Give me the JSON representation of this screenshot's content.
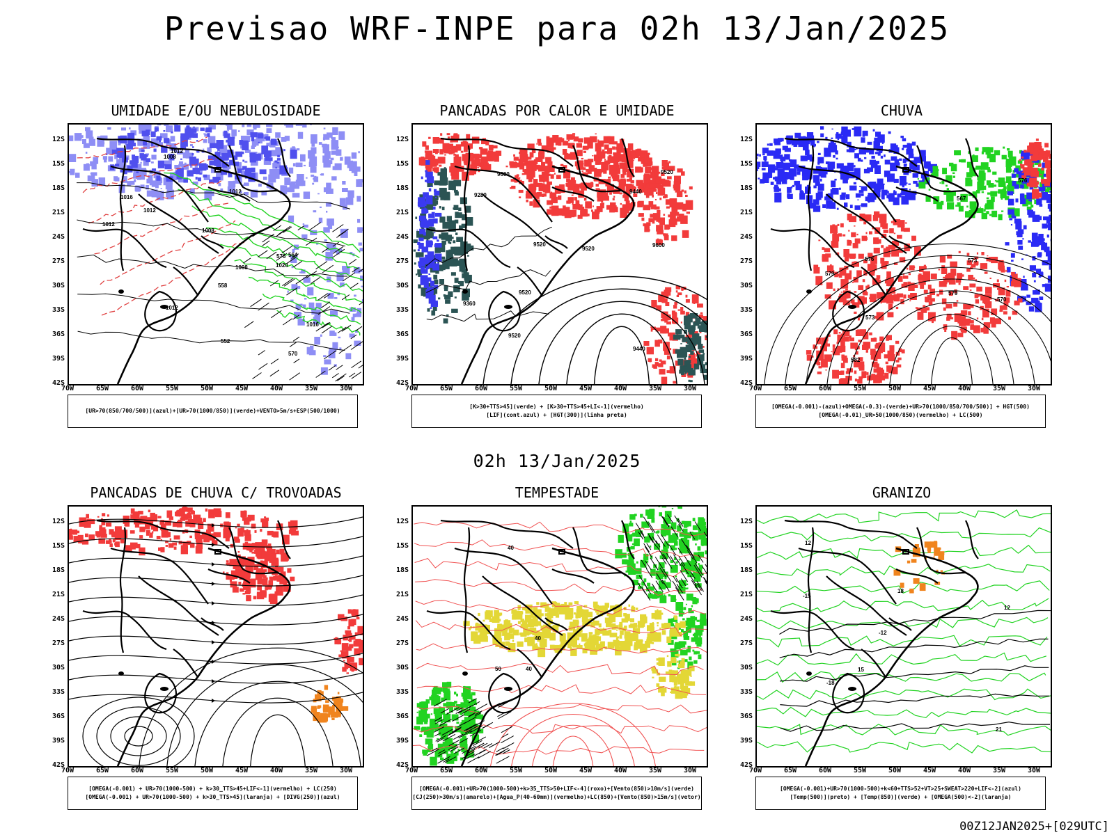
{
  "title": "Previsao WRF-INPE  para 02h 13/Jan/2025",
  "subtitle": "02h 13/Jan/2025",
  "footer": "00Z12JAN2025+[029UTC]",
  "lat_labels": [
    "12S",
    "15S",
    "18S",
    "21S",
    "24S",
    "27S",
    "30S",
    "33S",
    "36S",
    "39S",
    "42S"
  ],
  "lon_labels": [
    "70W",
    "65W",
    "60W",
    "55W",
    "50W",
    "45W",
    "40W",
    "35W",
    "30W"
  ],
  "panels": [
    {
      "title": "UMIDADE E/OU NEBULOSIDADE",
      "legend": [
        "[UR>70(850/700/500)](azul)+[UR>70(1000/850)](verde)+VENTO>5m/s+ESP(500/1000)"
      ],
      "contour_labels": [
        "1012",
        "1016",
        "1008",
        "1008",
        "1012",
        "1012",
        "1012",
        "1008",
        "1016",
        "1020",
        "1012",
        "576",
        "570",
        "564",
        "558",
        "552"
      ]
    },
    {
      "title": "PANCADAS POR CALOR E UMIDADE",
      "legend": [
        "[K>30+TTS>45](verde) + [K>30+TTS>45+LI<-1](vermelho)",
        "[LIF](cont.azul) + [HGT(300)](linha preta)"
      ],
      "contour_labels": [
        "9600",
        "9600",
        "9520",
        "9440",
        "9360",
        "9280",
        "9520",
        "9520",
        "9520",
        "9520",
        "9440"
      ]
    },
    {
      "title": "CHUVA",
      "legend": [
        "[OMEGA(-0.001)-(azul)+OMEGA(-0.3)-(verde)+UR>70(1000/850/700/500)] + HGT(500)",
        "[OMEGA(-0.01)_UR>50(1000/850)(vermelho) + LC(500)"
      ],
      "contour_labels": [
        "582",
        "579",
        "576",
        "573",
        "570",
        "567",
        "579",
        "576",
        "573"
      ]
    },
    {
      "title": "PANCADAS DE CHUVA C/ TROVOADAS",
      "legend": [
        "[OMEGA(-0.001) + UR>70(1000-500) + k>30_TTS>45+LIF<-1](vermelho) + LC(250)",
        "[OMEGA(-0.001) + UR>70(1000-500) + k>30_TTS>45](laranja) + [DIVG(250)](azul)"
      ],
      "contour_labels": []
    },
    {
      "title": "TEMPESTADE",
      "legend": [
        "[OMEGA(-0.001)+UR>70(1000-500)+k>35_TTS>50+LIF<-4](roxo)+[Vento(850)>10m/s](verde)",
        "[CJ(250)>30m/s](amarelo)+[Agua_P(40-60mm)](vermelho)+LC(850)+[Vento(850)>15m/s](vetor)"
      ],
      "contour_labels": [
        "40",
        "40",
        "50",
        "40"
      ]
    },
    {
      "title": "GRANIZO",
      "legend": [
        "[OMEGA(-0.001)+UR>70(1000-500)+k<60+TTS>52+VT>25+SWEAT>220+LIF<-2](azul)",
        "[Temp(500)](preto) + [Temp(850)](verde) + [OMEGA(500)<-2](laranja)"
      ],
      "contour_labels": [
        "-12",
        "-15",
        "-18",
        "12",
        "15",
        "18",
        "21",
        "12"
      ]
    }
  ],
  "colors": {
    "blue_fill": "#8e8ef5",
    "blue_dark": "#3b3bf0",
    "green": "#21d321",
    "red": "#f23b3b",
    "teal": "#2b5454",
    "yellow": "#e3d736",
    "orange": "#f0841e"
  }
}
